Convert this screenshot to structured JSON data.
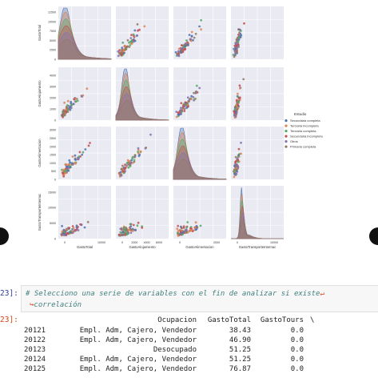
{
  "chart_data": {
    "type": "scatter",
    "variables": [
      "GastoTotal",
      "GastoAlojamiento",
      "GastoAlimentacion",
      "GastoTransporteInternac"
    ],
    "ranges": [
      [
        0,
        14000
      ],
      [
        0,
        4700
      ],
      [
        0,
        3200
      ],
      [
        0,
        17000
      ]
    ],
    "ticks": [
      [
        "0",
        "2500",
        "5000",
        "7500",
        "10000",
        "12500"
      ],
      [
        "0",
        "1000",
        "2000",
        "3000",
        "4000"
      ],
      [
        "0",
        "500",
        "1000",
        "1500",
        "2000",
        "2500",
        "3000"
      ],
      [
        "0",
        "5000",
        "10000",
        "15000"
      ]
    ],
    "xticks": [
      [
        "0",
        "10000"
      ],
      [
        "0",
        "2000",
        "4000",
        "6000"
      ],
      [
        "0",
        "2000"
      ],
      [
        "0",
        "10000"
      ]
    ],
    "legend_title": "Estudio",
    "legend_position": "right",
    "series": [
      {
        "name": "Secundaria completa",
        "color": "#4c72b0"
      },
      {
        "name": "Terciaria incompleta",
        "color": "#dd8452"
      },
      {
        "name": "Terciaria completa",
        "color": "#55a868"
      },
      {
        "name": "Secundaria incompleta",
        "color": "#c44e52"
      },
      {
        "name": "Otros",
        "color": "#8172b3"
      },
      {
        "name": "Primaria completa",
        "color": "#937860"
      }
    ]
  },
  "cell": {
    "in_prompt": "23]:",
    "code_line1": "# Selecciono una serie de variables con el fin de analizar si existe",
    "code_wrap": "↵",
    "code_line2": "correlación",
    "wrap_indent": "↪",
    "out_prompt": "23]:"
  },
  "table": {
    "headers": [
      "Ocupacion",
      "GastoTotal",
      "GastoTours",
      "\\"
    ],
    "rows": [
      {
        "index": "20121",
        "ocupacion": "Empl. Adm, Cajero, Vendedor",
        "total": "38.43",
        "tours": "0.0"
      },
      {
        "index": "20122",
        "ocupacion": "Empl. Adm, Cajero, Vendedor",
        "total": "46.90",
        "tours": "0.0"
      },
      {
        "index": "20123",
        "ocupacion": "Desocupado",
        "total": "51.25",
        "tours": "0.0"
      },
      {
        "index": "20124",
        "ocupacion": "Empl. Adm, Cajero, Vendedor",
        "total": "51.25",
        "tours": "0.0"
      },
      {
        "index": "20125",
        "ocupacion": "Empl. Adm, Cajero, Vendedor",
        "total": "76.87",
        "tours": "0.0"
      }
    ]
  }
}
